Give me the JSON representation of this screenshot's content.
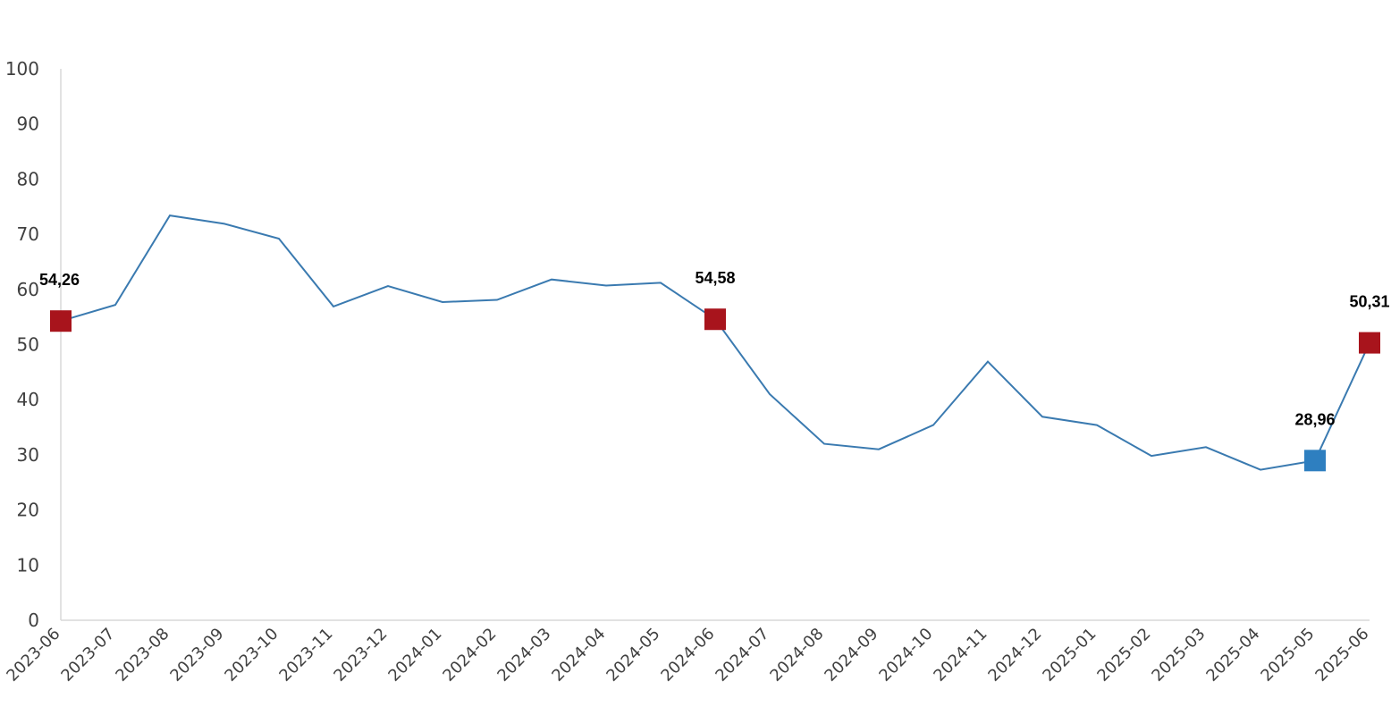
{
  "chart_data": {
    "type": "line",
    "title": "",
    "xlabel": "",
    "ylabel": "",
    "ylim": [
      0,
      100
    ],
    "yticks": [
      0,
      10,
      20,
      30,
      40,
      50,
      60,
      70,
      80,
      90,
      100
    ],
    "grid": false,
    "legend": "none",
    "categories": [
      "2023-06",
      "2023-07",
      "2023-08",
      "2023-09",
      "2023-10",
      "2023-11",
      "2023-12",
      "2024-01",
      "2024-02",
      "2024-03",
      "2024-04",
      "2024-05",
      "2024-06",
      "2024-07",
      "2024-08",
      "2024-09",
      "2024-10",
      "2024-11",
      "2024-12",
      "2025-01",
      "2025-02",
      "2025-03",
      "2025-04",
      "2025-05",
      "2025-06"
    ],
    "series": [
      {
        "color": "#3a7ab0",
        "values": [
          54.26,
          57.2,
          73.4,
          71.9,
          69.2,
          56.9,
          60.6,
          57.7,
          58.1,
          61.8,
          60.7,
          61.2,
          54.58,
          41.0,
          32.0,
          31.0,
          35.4,
          46.9,
          36.9,
          35.4,
          29.8,
          31.4,
          27.3,
          28.96,
          50.31
        ]
      }
    ],
    "highlights": [
      {
        "category": "2023-06",
        "value": 54.26,
        "label": "54,26",
        "color": "#a8141c"
      },
      {
        "category": "2024-06",
        "value": 54.58,
        "label": "54,58",
        "color": "#a8141c"
      },
      {
        "category": "2025-05",
        "value": 28.96,
        "label": "28,96",
        "color": "#2e7fc0"
      },
      {
        "category": "2025-06",
        "value": 50.31,
        "label": "50,31",
        "color": "#a8141c"
      }
    ]
  }
}
